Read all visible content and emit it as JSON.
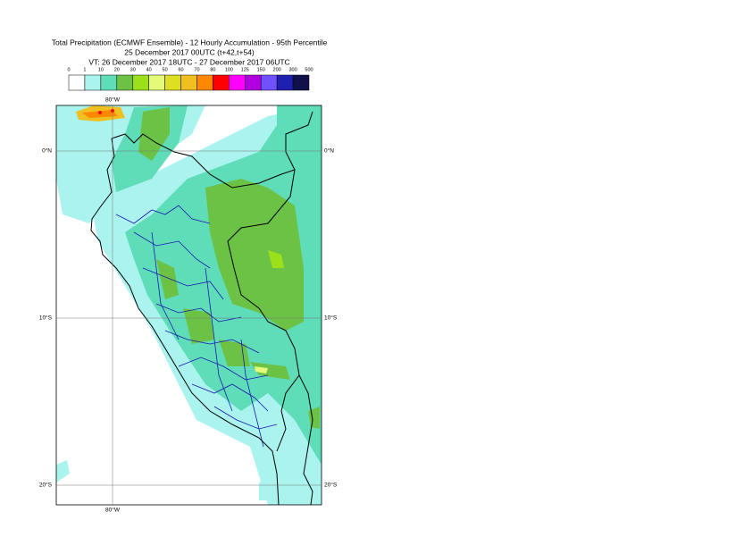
{
  "header": {
    "title_lines": [
      "Total Precipitation (ECMWF Ensemble) - 12 Hourly Accumulation - 95th Percentile",
      "25 December 2017 00UTC (t+42,t+54)",
      "VT: 26 December 2017 18UTC - 27 December 2017 06UTC"
    ]
  },
  "colorbar": {
    "labels": [
      "0",
      "1",
      "10",
      "20",
      "30",
      "40",
      "50",
      "60",
      "70",
      "80",
      "100",
      "125",
      "150",
      "200",
      "300",
      "500"
    ],
    "colors": [
      "#ffffff",
      "#aaf3ef",
      "#5fdcb8",
      "#6cc244",
      "#9ce01c",
      "#e4fa78",
      "#dede22",
      "#f0c020",
      "#ff8800",
      "#ff0000",
      "#ff00ff",
      "#b000e0",
      "#7050ff",
      "#2020b0",
      "#10104a"
    ]
  },
  "map": {
    "lat_labels": [
      "0°N",
      "10°S",
      "20°S"
    ],
    "lon_labels": [
      "80°W"
    ]
  }
}
